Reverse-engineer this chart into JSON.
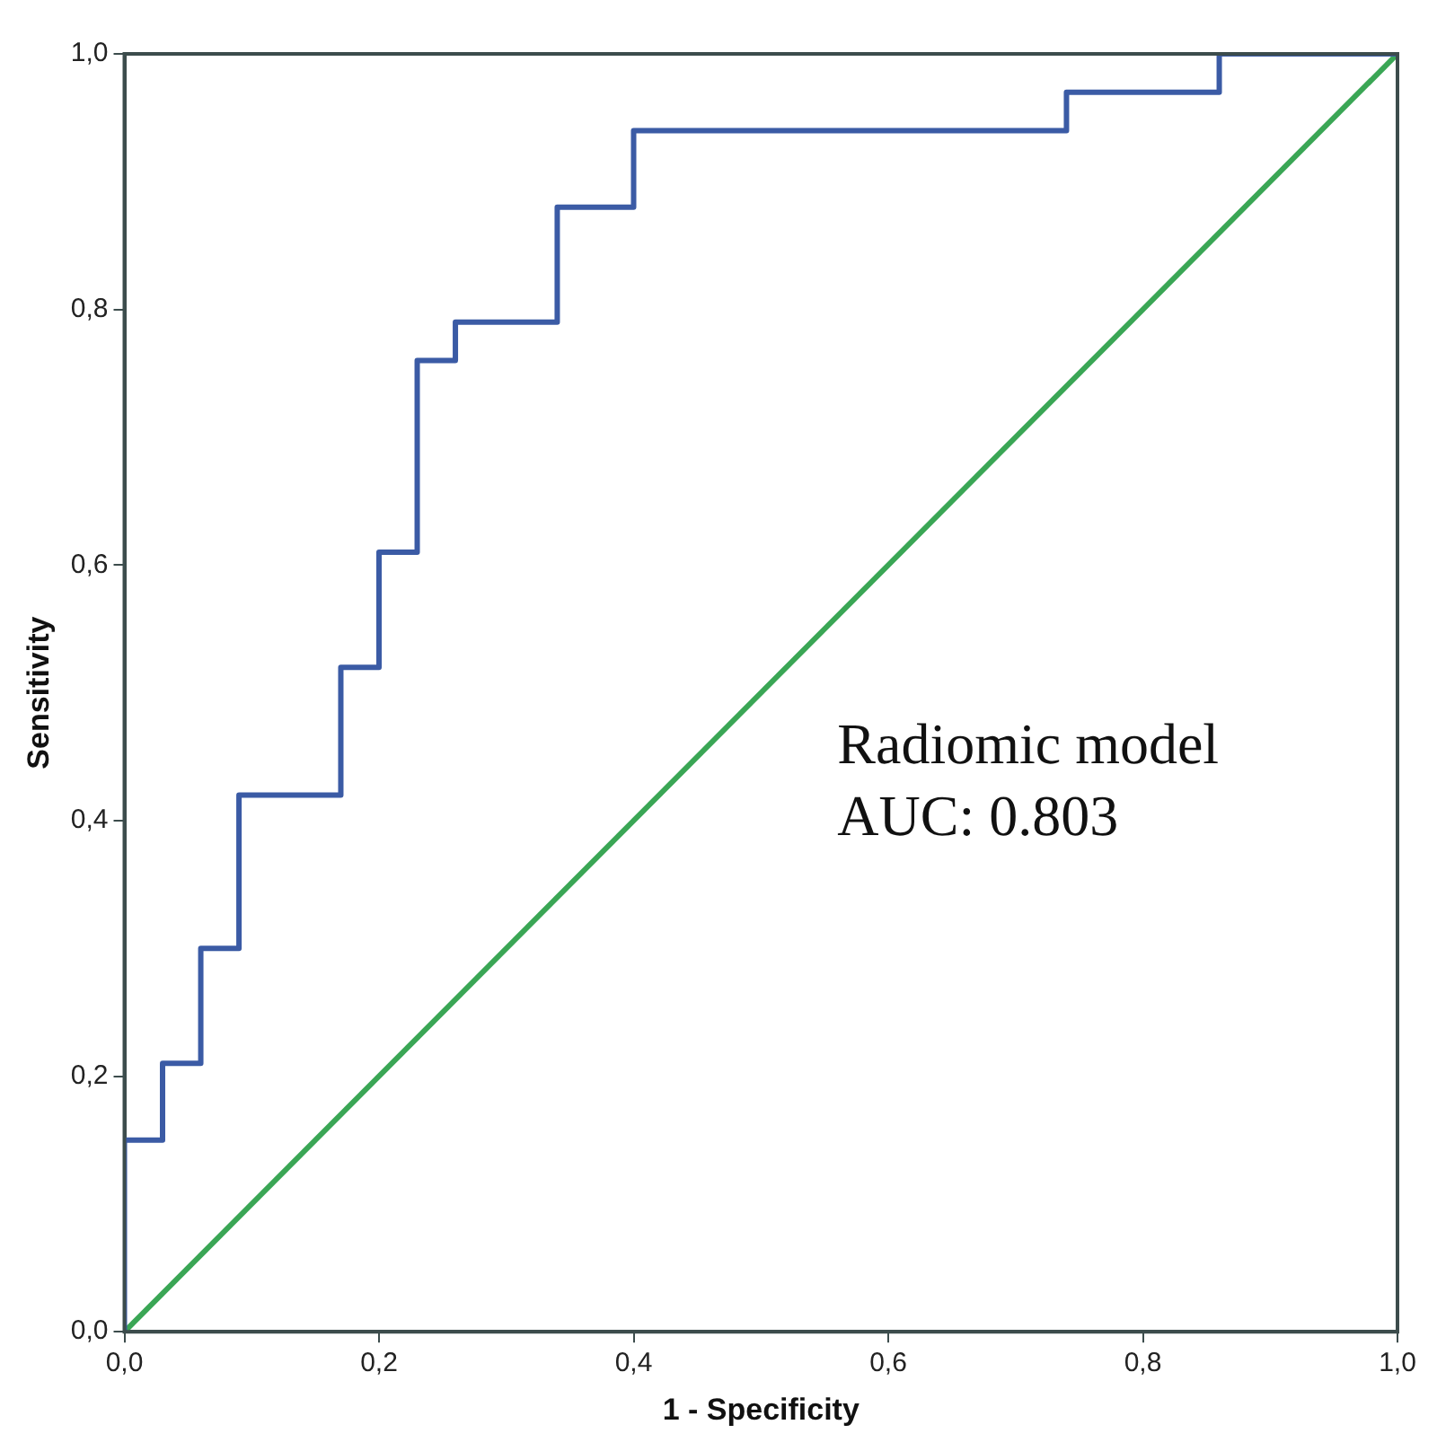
{
  "chart_data": {
    "type": "step",
    "xlabel": "1 - Specificity",
    "ylabel": "Sensitivity",
    "series": [
      {
        "color": "#3b5ba5",
        "x": [
          0,
          0,
          0.03,
          0.06,
          0.09,
          0.17,
          0.2,
          0.23,
          0.26,
          0.34,
          0.4,
          0.74,
          0.86,
          1
        ],
        "values": [
          0,
          0.15,
          0.21,
          0.3,
          0.42,
          0.52,
          0.61,
          0.76,
          0.79,
          0.88,
          0.94,
          0.97,
          1,
          1
        ]
      },
      {
        "type": "line",
        "color": "#3aa655",
        "x": [
          0,
          1
        ],
        "values": [
          0,
          1
        ]
      }
    ],
    "xlim": [
      0,
      1
    ],
    "ylim": [
      0,
      1
    ],
    "xticks": [
      {
        "value": 0,
        "label": "0,0"
      },
      {
        "value": 0.2,
        "label": "0,2"
      },
      {
        "value": 0.4,
        "label": "0,4"
      },
      {
        "value": 0.6,
        "label": "0,6"
      },
      {
        "value": 0.8,
        "label": "0,8"
      },
      {
        "value": 1,
        "label": "1,0"
      }
    ],
    "yticks": [
      {
        "value": 0,
        "label": "0,0"
      },
      {
        "value": 0.2,
        "label": "0,2"
      },
      {
        "value": 0.4,
        "label": "0,4"
      },
      {
        "value": 0.6,
        "label": "0,6"
      },
      {
        "value": 0.8,
        "label": "0,8"
      },
      {
        "value": 1,
        "label": "1,0"
      }
    ],
    "annotations": [
      "Radiomic model",
      "AUC: 0.803"
    ],
    "grid": false,
    "legend": false,
    "marker": "none"
  }
}
